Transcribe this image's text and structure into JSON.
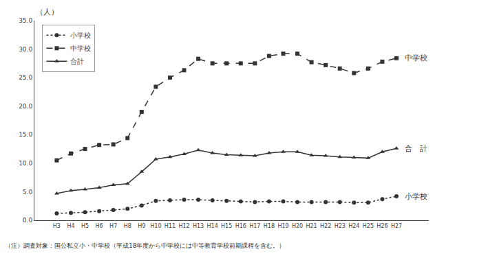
{
  "chart_data": {
    "type": "line",
    "categories": [
      "H3",
      "H4",
      "H5",
      "H6",
      "H7",
      "H8",
      "H9",
      "H10",
      "H11",
      "H12",
      "H13",
      "H14",
      "H15",
      "H16",
      "H17",
      "H18",
      "H19",
      "H20",
      "H21",
      "H22",
      "H23",
      "H24",
      "H25",
      "H26",
      "H27"
    ],
    "series": [
      {
        "name": "小学校",
        "values": [
          1.2,
          1.3,
          1.4,
          1.6,
          1.8,
          2.0,
          2.6,
          3.4,
          3.5,
          3.6,
          3.6,
          3.5,
          3.4,
          3.3,
          3.2,
          3.3,
          3.3,
          3.2,
          3.2,
          3.2,
          3.2,
          3.1,
          3.1,
          3.7,
          4.2
        ],
        "line_style": "dotted",
        "marker": "circle"
      },
      {
        "name": "中学校",
        "values": [
          10.5,
          11.7,
          12.5,
          13.2,
          13.3,
          14.4,
          19.0,
          23.4,
          25.0,
          26.3,
          28.3,
          27.5,
          27.5,
          27.5,
          27.5,
          28.8,
          29.2,
          29.2,
          27.7,
          27.2,
          26.6,
          25.8,
          26.6,
          27.8,
          28.4
        ],
        "line_style": "dashed",
        "marker": "square"
      },
      {
        "name": "合計",
        "values": [
          4.7,
          5.2,
          5.4,
          5.7,
          6.2,
          6.4,
          8.5,
          10.7,
          11.1,
          11.6,
          12.3,
          11.8,
          11.5,
          11.4,
          11.3,
          11.8,
          12.0,
          12.0,
          11.4,
          11.3,
          11.1,
          11.0,
          10.9,
          12.0,
          12.6
        ],
        "line_style": "solid",
        "marker": "triangle"
      }
    ],
    "color": "#333333",
    "ylabel": "（人）",
    "annotations": [
      {
        "text": "中学校",
        "series": "中学校"
      },
      {
        "text": "合　計",
        "series": "合計"
      },
      {
        "text": "小学校",
        "series": "小学校"
      }
    ],
    "note": "（注）調査対象：国公私立小・中学校（平成18年度から中学校には中等教育学校前期課程を含む。）",
    "ylim": [
      0,
      35
    ],
    "yticks": [
      {
        "value": 0,
        "label": "0.0"
      },
      {
        "value": 5,
        "label": "5.0"
      },
      {
        "value": 10,
        "label": "10.0"
      },
      {
        "value": 15,
        "label": "15.0"
      },
      {
        "value": 20,
        "label": "20.0"
      },
      {
        "value": 25,
        "label": "25.0"
      },
      {
        "value": 30,
        "label": "30.0"
      },
      {
        "value": 35,
        "label": "35.0"
      }
    ],
    "grid": false,
    "legend": "upper left"
  }
}
